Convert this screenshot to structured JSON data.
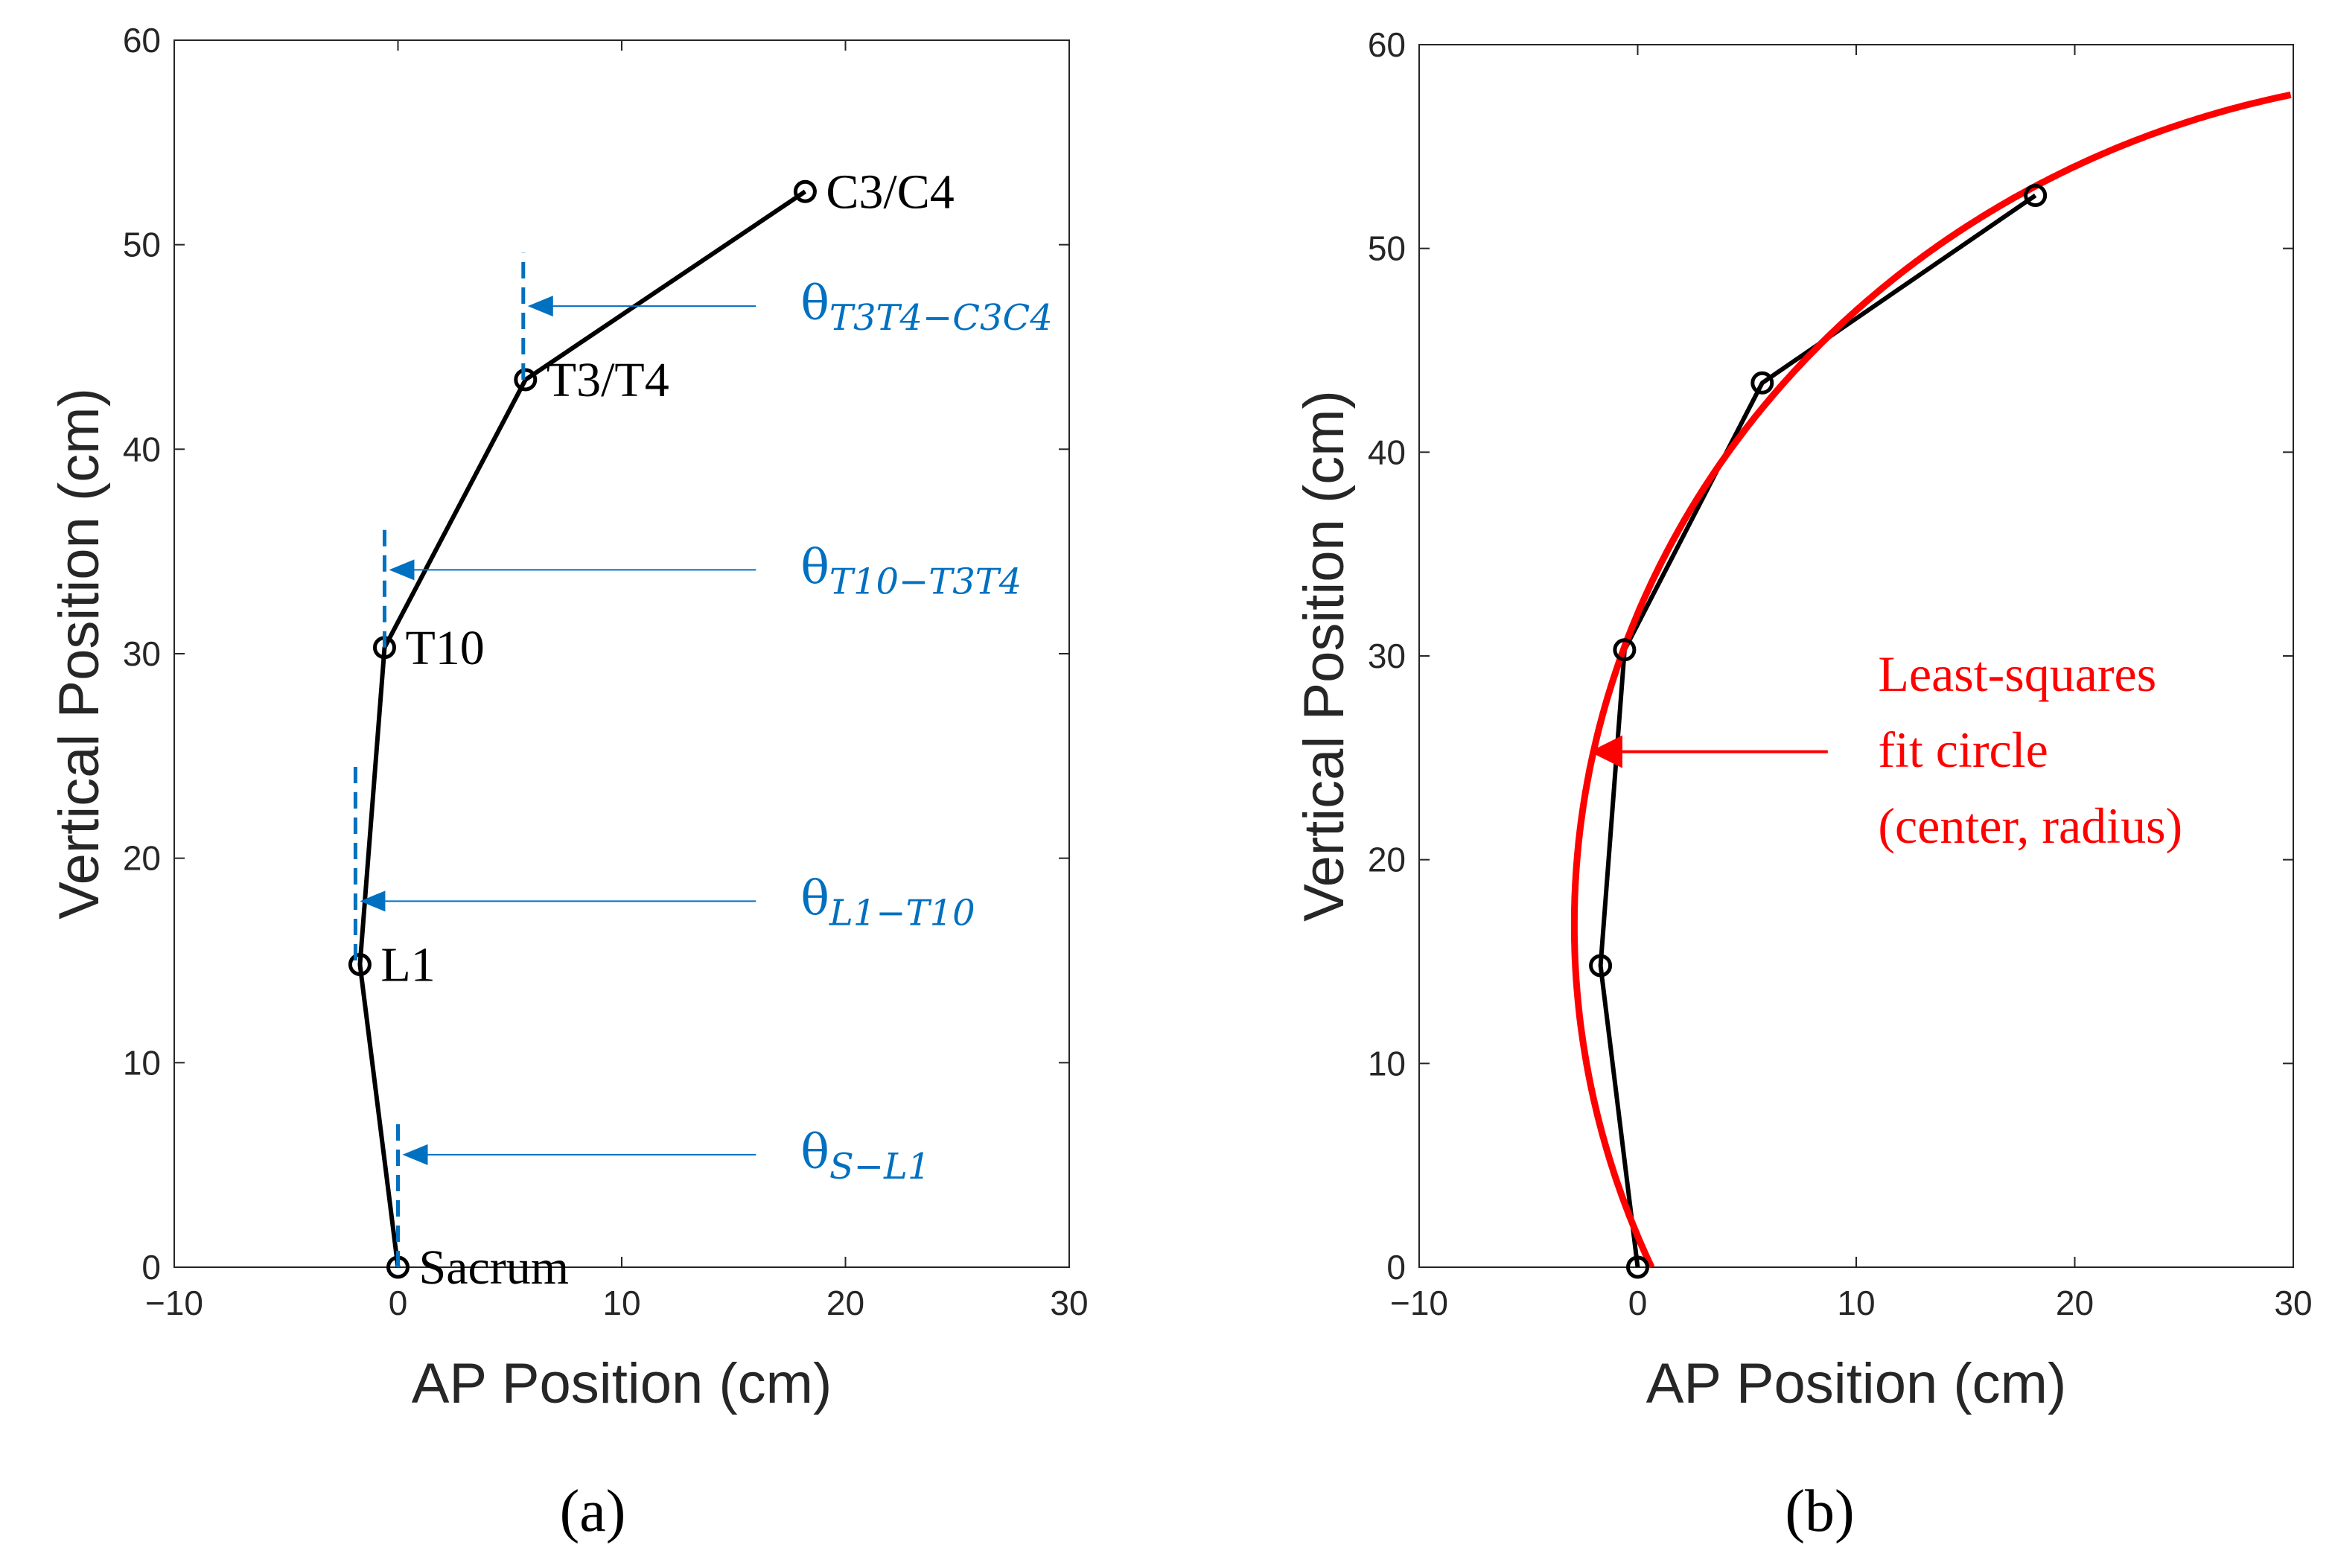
{
  "colors": {
    "line": "#000000",
    "annotation_blue": "#0070c0",
    "fit_red": "#ff0000",
    "axis": "#262626"
  },
  "chart_data": [
    {
      "panel": "(a)",
      "type": "line",
      "xlabel": "AP Position (cm)",
      "ylabel": "Vertical Position (cm)",
      "xlim": [
        -10,
        30
      ],
      "ylim": [
        0,
        60
      ],
      "xticks": [
        -10,
        0,
        10,
        20,
        30
      ],
      "yticks": [
        0,
        10,
        20,
        30,
        40,
        50,
        60
      ],
      "xtick_labels": [
        "−10",
        "0",
        "10",
        "20",
        "30"
      ],
      "grid": false,
      "marker": "open-circle",
      "points": [
        {
          "name": "Sacrum",
          "x": 0.0,
          "y": 0.0
        },
        {
          "name": "L1",
          "x": -1.7,
          "y": 14.8
        },
        {
          "name": "T10",
          "x": -0.6,
          "y": 30.3
        },
        {
          "name": "T3/T4",
          "x": 5.7,
          "y": 43.4
        },
        {
          "name": "C3/C4",
          "x": 18.2,
          "y": 52.6
        }
      ],
      "angle_annotations": [
        {
          "base": "θ",
          "sub": "S−L1",
          "ref_x": 0.0,
          "ref_y0": 0.0,
          "ref_y1": 7.0,
          "arrow_y": 5.5,
          "arrow_from_x": 16.0,
          "label_x": 18.0
        },
        {
          "base": "θ",
          "sub": "L1−T10",
          "ref_x": -1.9,
          "ref_y0": 15.0,
          "ref_y1": 24.7,
          "arrow_y": 17.9,
          "arrow_from_x": 16.0,
          "label_x": 18.0
        },
        {
          "base": "θ",
          "sub": "T10−T3T4",
          "ref_x": -0.6,
          "ref_y0": 30.3,
          "ref_y1": 36.3,
          "arrow_y": 34.1,
          "arrow_from_x": 16.0,
          "label_x": 18.0
        },
        {
          "base": "θ",
          "sub": "T3T4−C3C4",
          "ref_x": 5.6,
          "ref_y0": 43.4,
          "ref_y1": 49.6,
          "arrow_y": 47.0,
          "arrow_from_x": 16.0,
          "label_x": 18.0
        }
      ]
    },
    {
      "panel": "(b)",
      "type": "line",
      "xlabel": "AP Position (cm)",
      "ylabel": "Vertical Position (cm)",
      "xlim": [
        -10,
        30
      ],
      "ylim": [
        0,
        60
      ],
      "xticks": [
        -10,
        0,
        10,
        20,
        30
      ],
      "yticks": [
        0,
        10,
        20,
        30,
        40,
        50,
        60
      ],
      "xtick_labels": [
        "−10",
        "0",
        "10",
        "20",
        "30"
      ],
      "grid": false,
      "marker": "open-circle",
      "points": [
        {
          "x": 0.0,
          "y": 0.0
        },
        {
          "x": -1.7,
          "y": 14.8
        },
        {
          "x": -0.6,
          "y": 30.3
        },
        {
          "x": 5.7,
          "y": 43.4
        },
        {
          "x": 18.2,
          "y": 52.6
        }
      ],
      "fit_circle": {
        "center_x": 38.8,
        "center_y": 16.8,
        "radius": 41.7
      },
      "annotation": {
        "lines": [
          "Least-squares",
          "fit circle",
          "(center, radius)"
        ],
        "arrow_y": 25.3,
        "arrow_from_x": 8.7,
        "arrow_to_x": -2.2,
        "label_x": 11.0
      }
    }
  ]
}
